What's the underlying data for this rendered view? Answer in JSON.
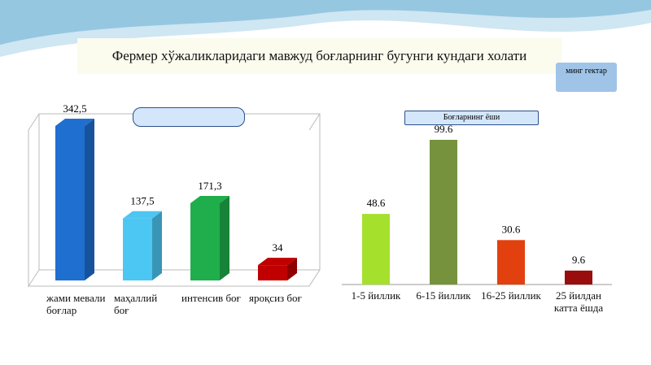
{
  "title": "Фермер хўжаликларидаги мавжуд боғларнинг бугунги кундаги холати",
  "unit_note": "минг гектар",
  "chart_data": [
    {
      "type": "bar3d",
      "categories": [
        "жами мевали боғлар",
        "маҳаллий боғ",
        "интенсив боғ",
        "яроқсиз боғ"
      ],
      "values": [
        342.5,
        137.5,
        171.3,
        34
      ],
      "value_labels": [
        "342,5",
        "137,5",
        "171,3",
        "34"
      ],
      "colors": [
        "#1f6fd0",
        "#4cc6f2",
        "#1fae4b",
        "#c00000"
      ]
    },
    {
      "type": "bar",
      "title": "Боғларнинг ёши",
      "categories": [
        "1-5 йиллик",
        "6-15 йиллик",
        "16-25 йиллик",
        "25 йилдан катта ёшда"
      ],
      "values": [
        48.6,
        99.6,
        30.6,
        9.6
      ],
      "colors": [
        "#a4e02c",
        "#76923c",
        "#e2400e",
        "#9a0d0d"
      ]
    }
  ]
}
